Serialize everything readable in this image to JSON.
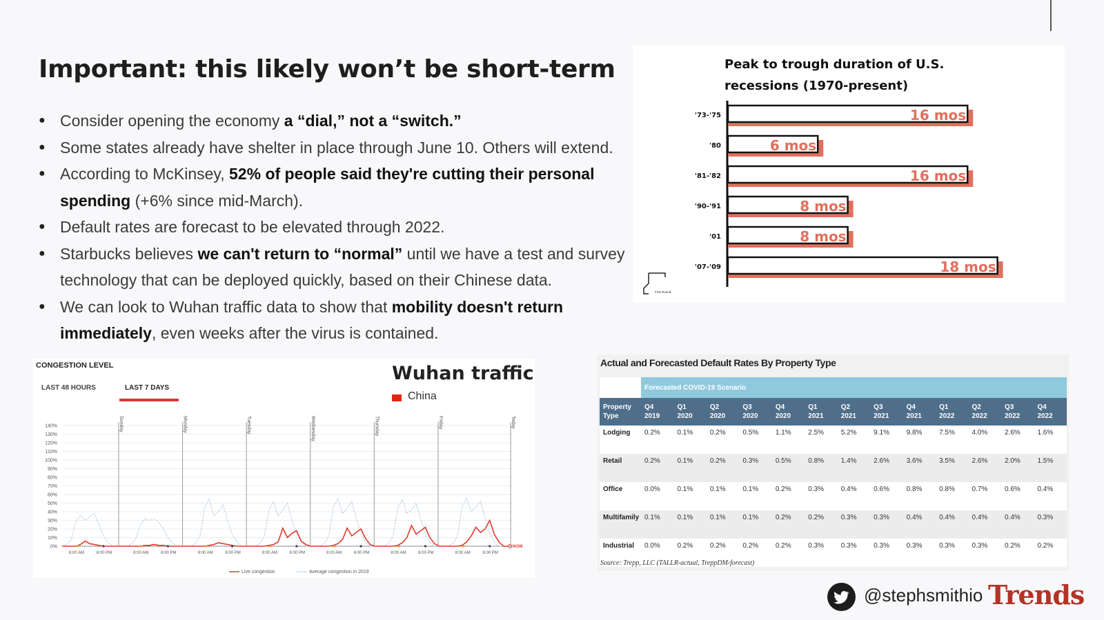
{
  "slide": {
    "title": "Important: this likely won’t be short-term",
    "bullets": [
      {
        "parts": [
          {
            "t": "Consider opening the economy ",
            "b": false
          },
          {
            "t": "a “dial,” not a “switch.”",
            "b": true
          }
        ]
      },
      {
        "parts": [
          {
            "t": "Some states already have shelter in place through June 10. Others will extend.",
            "b": false
          }
        ]
      },
      {
        "parts": [
          {
            "t": "According to McKinsey, ",
            "b": false
          },
          {
            "t": "52% of people said they're cutting their personal spending",
            "b": true
          },
          {
            "t": " (+6% since mid-March).",
            "b": false
          }
        ]
      },
      {
        "parts": [
          {
            "t": "Default rates are forecast to be elevated through 2022.",
            "b": false
          }
        ]
      },
      {
        "parts": [
          {
            "t": "Starbucks believes ",
            "b": false
          },
          {
            "t": "we can't return to “normal”",
            "b": true
          },
          {
            "t": " until we have a test and survey technology that can be deployed quickly, based on their Chinese data.",
            "b": false
          }
        ]
      },
      {
        "parts": [
          {
            "t": "We can look to Wuhan traffic data to show that ",
            "b": false
          },
          {
            "t": "mobility doesn't return immediately",
            "b": true
          },
          {
            "t": ", even weeks after the virus is contained.",
            "b": false
          }
        ]
      }
    ]
  },
  "chart_data": [
    {
      "type": "bar",
      "title": "Peak to trough duration of U.S. recessions (1970-present)",
      "categories": [
        "'73-'75",
        "'80",
        "'81-'82",
        "'90-'91",
        "'01",
        "'07-'09"
      ],
      "values": [
        16,
        6,
        16,
        8,
        8,
        18
      ],
      "labels": [
        "16 mos",
        "6 mos",
        "16 mos",
        "8 mos",
        "8 mos",
        "18 mos"
      ],
      "logo_text": "First Round",
      "colors": {
        "bar": "#e0705e",
        "outline": "#111111",
        "label": "#e0705e"
      }
    },
    {
      "type": "line",
      "title": "Wuhan traffic",
      "header": "CONGESTION LEVEL",
      "tabs": [
        "LAST 48 HOURS",
        "LAST 7 DAYS"
      ],
      "active_tab": "LAST 7 DAYS",
      "region_legend": "China",
      "y_ticks": [
        "140%",
        "130%",
        "120%",
        "110%",
        "100%",
        "90%",
        "80%",
        "70%",
        "60%",
        "50%",
        "40%",
        "30%",
        "20%",
        "10%",
        "0%"
      ],
      "ylim": [
        0,
        140
      ],
      "day_labels": [
        "Sunday",
        "Monday",
        "Tuesday",
        "Wednesday",
        "Thursday",
        "Friday",
        "Today"
      ],
      "x_tick_labels": [
        "8:00 AM",
        "6:00 PM"
      ],
      "now_label": "NOW",
      "series": [
        {
          "name": "Live congestion",
          "color": "#e03a2e",
          "days": [
            [
              0,
              0,
              0,
              0,
              2,
              6,
              3,
              2,
              1,
              0,
              0,
              0,
              0,
              0
            ],
            [
              0,
              0,
              0,
              0,
              1,
              1,
              2,
              1,
              1,
              0,
              0,
              0,
              0,
              0
            ],
            [
              0,
              0,
              0,
              0,
              1,
              2,
              4,
              3,
              2,
              1,
              0,
              0,
              0,
              0
            ],
            [
              0,
              0,
              0,
              1,
              2,
              5,
              21,
              10,
              15,
              18,
              6,
              2,
              0,
              0
            ],
            [
              0,
              0,
              0,
              1,
              3,
              8,
              21,
              12,
              16,
              20,
              9,
              2,
              0,
              0
            ],
            [
              0,
              0,
              0,
              1,
              4,
              10,
              24,
              14,
              18,
              22,
              10,
              3,
              0,
              0
            ],
            [
              0,
              0,
              0,
              1,
              5,
              12,
              22,
              16,
              20,
              30,
              14,
              5,
              0,
              0
            ]
          ]
        },
        {
          "name": "Average congestion in 2019",
          "color": "#a9c4dc",
          "days": [
            [
              0,
              2,
              8,
              28,
              36,
              30,
              34,
              38,
              26,
              12,
              4,
              0,
              0,
              0
            ],
            [
              0,
              2,
              8,
              24,
              32,
              30,
              32,
              28,
              20,
              10,
              4,
              0,
              0,
              0
            ],
            [
              0,
              3,
              12,
              45,
              55,
              35,
              40,
              48,
              30,
              14,
              5,
              0,
              0,
              0
            ],
            [
              0,
              3,
              12,
              42,
              52,
              35,
              42,
              50,
              30,
              14,
              5,
              0,
              0,
              0
            ],
            [
              0,
              3,
              12,
              45,
              55,
              38,
              44,
              52,
              32,
              15,
              5,
              0,
              0,
              0
            ],
            [
              0,
              3,
              12,
              44,
              54,
              38,
              42,
              50,
              31,
              14,
              5,
              0,
              0,
              0
            ],
            [
              0,
              3,
              12,
              46,
              56,
              40,
              45,
              52,
              33,
              15,
              5,
              0,
              0,
              0
            ]
          ]
        }
      ]
    },
    {
      "type": "table",
      "title": "Actual and Forecasted Default Rates By Property Type",
      "scenario_label": "Forecasted COVID-19 Scenario",
      "columns": [
        [
          "Property",
          "Type"
        ],
        [
          "Q4",
          "2019"
        ],
        [
          "Q1",
          "2020"
        ],
        [
          "Q2",
          "2020"
        ],
        [
          "Q3",
          "2020"
        ],
        [
          "Q4",
          "2020"
        ],
        [
          "Q1",
          "2021"
        ],
        [
          "Q2",
          "2021"
        ],
        [
          "Q3",
          "2021"
        ],
        [
          "Q4",
          "2021"
        ],
        [
          "Q1",
          "2022"
        ],
        [
          "Q2",
          "2022"
        ],
        [
          "Q3",
          "2022"
        ],
        [
          "Q4",
          "2022"
        ]
      ],
      "rows": [
        [
          "Lodging",
          "0.2%",
          "0.1%",
          "0.2%",
          "0.5%",
          "1.1%",
          "2.5%",
          "5.2%",
          "9.1%",
          "9.8%",
          "7.5%",
          "4.0%",
          "2.6%",
          "1.6%"
        ],
        [
          "Retail",
          "0.2%",
          "0.1%",
          "0.2%",
          "0.3%",
          "0.5%",
          "0.8%",
          "1.4%",
          "2.6%",
          "3.6%",
          "3.5%",
          "2.6%",
          "2.0%",
          "1.5%"
        ],
        [
          "Office",
          "0.0%",
          "0.1%",
          "0.1%",
          "0.1%",
          "0.2%",
          "0.3%",
          "0.4%",
          "0.6%",
          "0.8%",
          "0.8%",
          "0.7%",
          "0.6%",
          "0.4%"
        ],
        [
          "Multifamily",
          "0.1%",
          "0.1%",
          "0.1%",
          "0.1%",
          "0.2%",
          "0.2%",
          "0.3%",
          "0.3%",
          "0.4%",
          "0.4%",
          "0.4%",
          "0.4%",
          "0.3%"
        ],
        [
          "Industrial",
          "0.0%",
          "0.2%",
          "0.2%",
          "0.2%",
          "0.2%",
          "0.3%",
          "0.3%",
          "0.3%",
          "0.3%",
          "0.3%",
          "0.3%",
          "0.2%",
          "0.2%"
        ]
      ],
      "source": "Source: Trepp, LLC (TALLR-actual, TreppDM-forecast)"
    }
  ],
  "footer": {
    "icon": "twitter-bird-icon",
    "handle": "@stephsmithio",
    "brand": "Trends"
  }
}
